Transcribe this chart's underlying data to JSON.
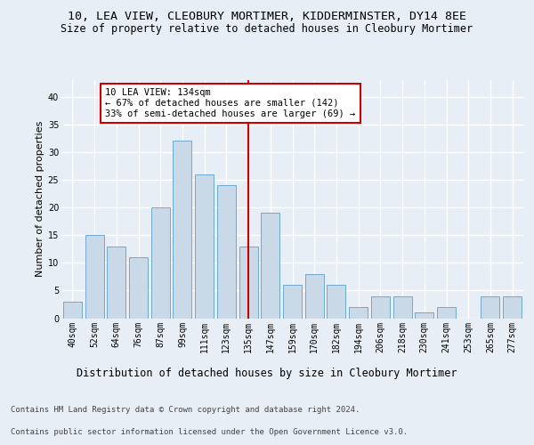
{
  "title1": "10, LEA VIEW, CLEOBURY MORTIMER, KIDDERMINSTER, DY14 8EE",
  "title2": "Size of property relative to detached houses in Cleobury Mortimer",
  "xlabel": "Distribution of detached houses by size in Cleobury Mortimer",
  "ylabel": "Number of detached properties",
  "footer1": "Contains HM Land Registry data © Crown copyright and database right 2024.",
  "footer2": "Contains public sector information licensed under the Open Government Licence v3.0.",
  "categories": [
    "40sqm",
    "52sqm",
    "64sqm",
    "76sqm",
    "87sqm",
    "99sqm",
    "111sqm",
    "123sqm",
    "135sqm",
    "147sqm",
    "159sqm",
    "170sqm",
    "182sqm",
    "194sqm",
    "206sqm",
    "218sqm",
    "230sqm",
    "241sqm",
    "253sqm",
    "265sqm",
    "277sqm"
  ],
  "values": [
    3,
    15,
    13,
    11,
    20,
    32,
    26,
    24,
    13,
    19,
    6,
    8,
    6,
    2,
    4,
    4,
    1,
    2,
    0,
    4,
    4
  ],
  "bar_color": "#c9d9e8",
  "bar_edge_color": "#6fa8d0",
  "vline_x": 8.0,
  "vline_color": "#cc0000",
  "annotation_text": "10 LEA VIEW: 134sqm\n← 67% of detached houses are smaller (142)\n33% of semi-detached houses are larger (69) →",
  "annotation_box_color": "#ffffff",
  "annotation_box_edge": "#cc0000",
  "ylim": [
    0,
    43
  ],
  "yticks": [
    0,
    5,
    10,
    15,
    20,
    25,
    30,
    35,
    40
  ],
  "background_color": "#e8eef5",
  "plot_background": "#e8eef5",
  "grid_color": "#ffffff",
  "title1_fontsize": 9.5,
  "title2_fontsize": 8.5,
  "xlabel_fontsize": 8.5,
  "ylabel_fontsize": 8,
  "tick_fontsize": 7,
  "footer_fontsize": 6.5,
  "ann_fontsize": 7.5
}
